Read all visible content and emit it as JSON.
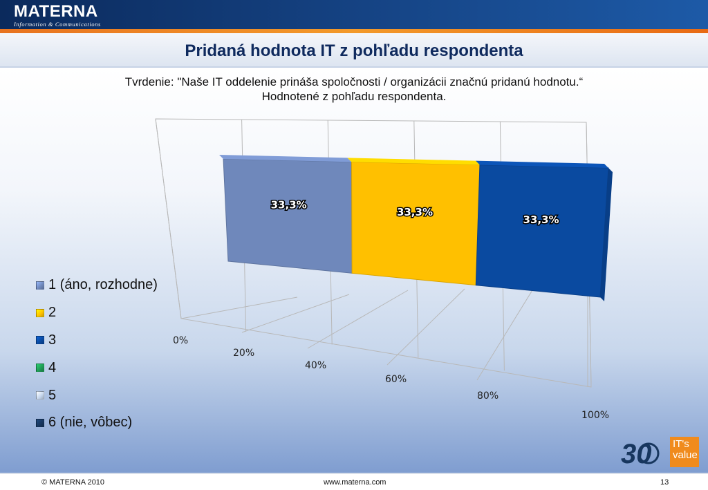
{
  "header": {
    "logo_name": "MATERNA",
    "logo_tagline": "Information & Communications"
  },
  "slide": {
    "title": "Pridaná hodnota IT z pohľadu respondenta",
    "subtitle_line1": "Tvrdenie: \"Naše IT oddelenie prináša spoločnosti / organizácii značnú pridanú hodnotu.“",
    "subtitle_line2": "Hodnotené z pohľadu respondenta."
  },
  "chart_data": {
    "type": "bar",
    "orientation": "horizontal-stacked-3d",
    "categories": [
      ""
    ],
    "series": [
      {
        "name": "1 (áno, rozhodne)",
        "values": [
          33.3
        ],
        "label": "33,3%",
        "color": "#6f88bb"
      },
      {
        "name": "2",
        "values": [
          33.3
        ],
        "label": "33,3%",
        "color": "#ffc000"
      },
      {
        "name": "3",
        "values": [
          33.3
        ],
        "label": "33,3%",
        "color": "#0a4aa0"
      },
      {
        "name": "4",
        "values": [
          0
        ],
        "label": "",
        "color": "#1f9b55"
      },
      {
        "name": "5",
        "values": [
          0
        ],
        "label": "",
        "color": "#c6d7ee"
      },
      {
        "name": "6 (nie, vôbec)",
        "values": [
          0
        ],
        "label": "",
        "color": "#17365e"
      }
    ],
    "x_ticks": [
      "0%",
      "20%",
      "40%",
      "60%",
      "80%",
      "100%"
    ],
    "xlim": [
      0,
      100
    ],
    "grid": true,
    "legend_position": "left"
  },
  "footer": {
    "copyright": "© MATERNA 2010",
    "website": "www.materna.com",
    "page_number": "13"
  },
  "branding": {
    "anniversary": "30",
    "badge_it": "IT",
    "badge_s": "'s",
    "badge_value": "value"
  }
}
